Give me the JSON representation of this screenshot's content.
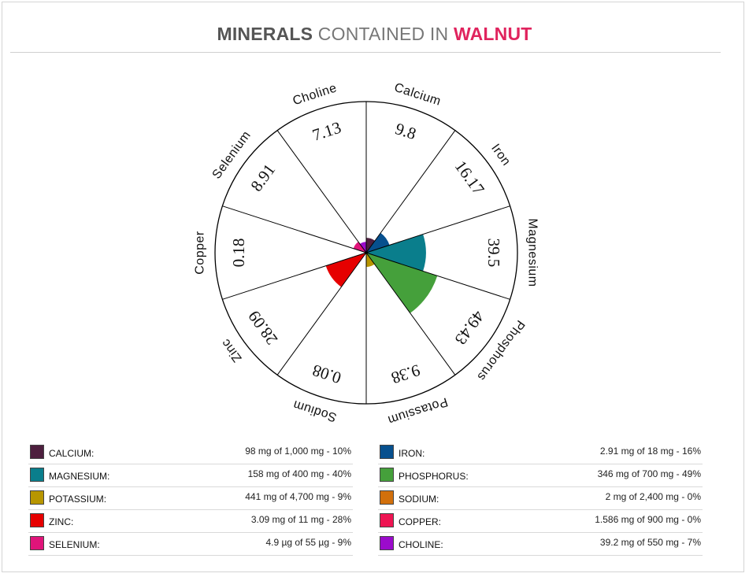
{
  "title": {
    "strong": "MINERALS",
    "middle": "CONTAINED IN",
    "accent": "WALNUT"
  },
  "colors": {
    "title_accent": "#e0245e"
  },
  "chart_data": {
    "type": "polar-area",
    "title": "MINERALS CONTAINED IN WALNUT",
    "max_value": 100,
    "slices": [
      {
        "name": "Magnesium",
        "value": 39.5,
        "label": "39.5",
        "color": "#0a7e8c"
      },
      {
        "name": "Phosphorus",
        "value": 49.43,
        "label": "49.43",
        "color": "#45a03b"
      },
      {
        "name": "Potassium",
        "value": 9.38,
        "label": "9.38",
        "color": "#b89600"
      },
      {
        "name": "Sodium",
        "value": 0.08,
        "label": "0.08",
        "color": "#d2700c"
      },
      {
        "name": "Zinc",
        "value": 28.09,
        "label": "28.09",
        "color": "#e60000"
      },
      {
        "name": "Copper",
        "value": 0.18,
        "label": "0.18",
        "color": "#ee1452"
      },
      {
        "name": "Selenium",
        "value": 8.91,
        "label": "8.91",
        "color": "#e0147a"
      },
      {
        "name": "Choline",
        "value": 7.13,
        "label": "7.13",
        "color": "#9b0bcc"
      },
      {
        "name": "Calcium",
        "value": 9.8,
        "label": "9.8",
        "color": "#4d1f3e"
      },
      {
        "name": "Iron",
        "value": 16.17,
        "label": "16.17",
        "color": "#07508e"
      }
    ]
  },
  "legend": {
    "left": [
      {
        "name": "CALCIUM:",
        "value": "98 mg of 1,000 mg - 10%",
        "color": "#4d1f3e"
      },
      {
        "name": "MAGNESIUM:",
        "value": "158 mg of 400 mg - 40%",
        "color": "#0a7e8c"
      },
      {
        "name": "POTASSIUM:",
        "value": "441 mg of 4,700 mg - 9%",
        "color": "#b89600"
      },
      {
        "name": "ZINC:",
        "value": "3.09 mg of 11 mg - 28%",
        "color": "#e60000"
      },
      {
        "name": "SELENIUM:",
        "value": "4.9 µg of 55 µg - 9%",
        "color": "#e0147a"
      }
    ],
    "right": [
      {
        "name": "IRON:",
        "value": "2.91 mg of 18 mg - 16%",
        "color": "#07508e"
      },
      {
        "name": "PHOSPHORUS:",
        "value": "346 mg of 700 mg - 49%",
        "color": "#45a03b"
      },
      {
        "name": "SODIUM:",
        "value": "2 mg of 2,400 mg - 0%",
        "color": "#d2700c"
      },
      {
        "name": "COPPER:",
        "value": "1.586 mg of 900 mg - 0%",
        "color": "#ee1452"
      },
      {
        "name": "CHOLINE:",
        "value": "39.2 mg of 550 mg - 7%",
        "color": "#9b0bcc"
      }
    ]
  }
}
